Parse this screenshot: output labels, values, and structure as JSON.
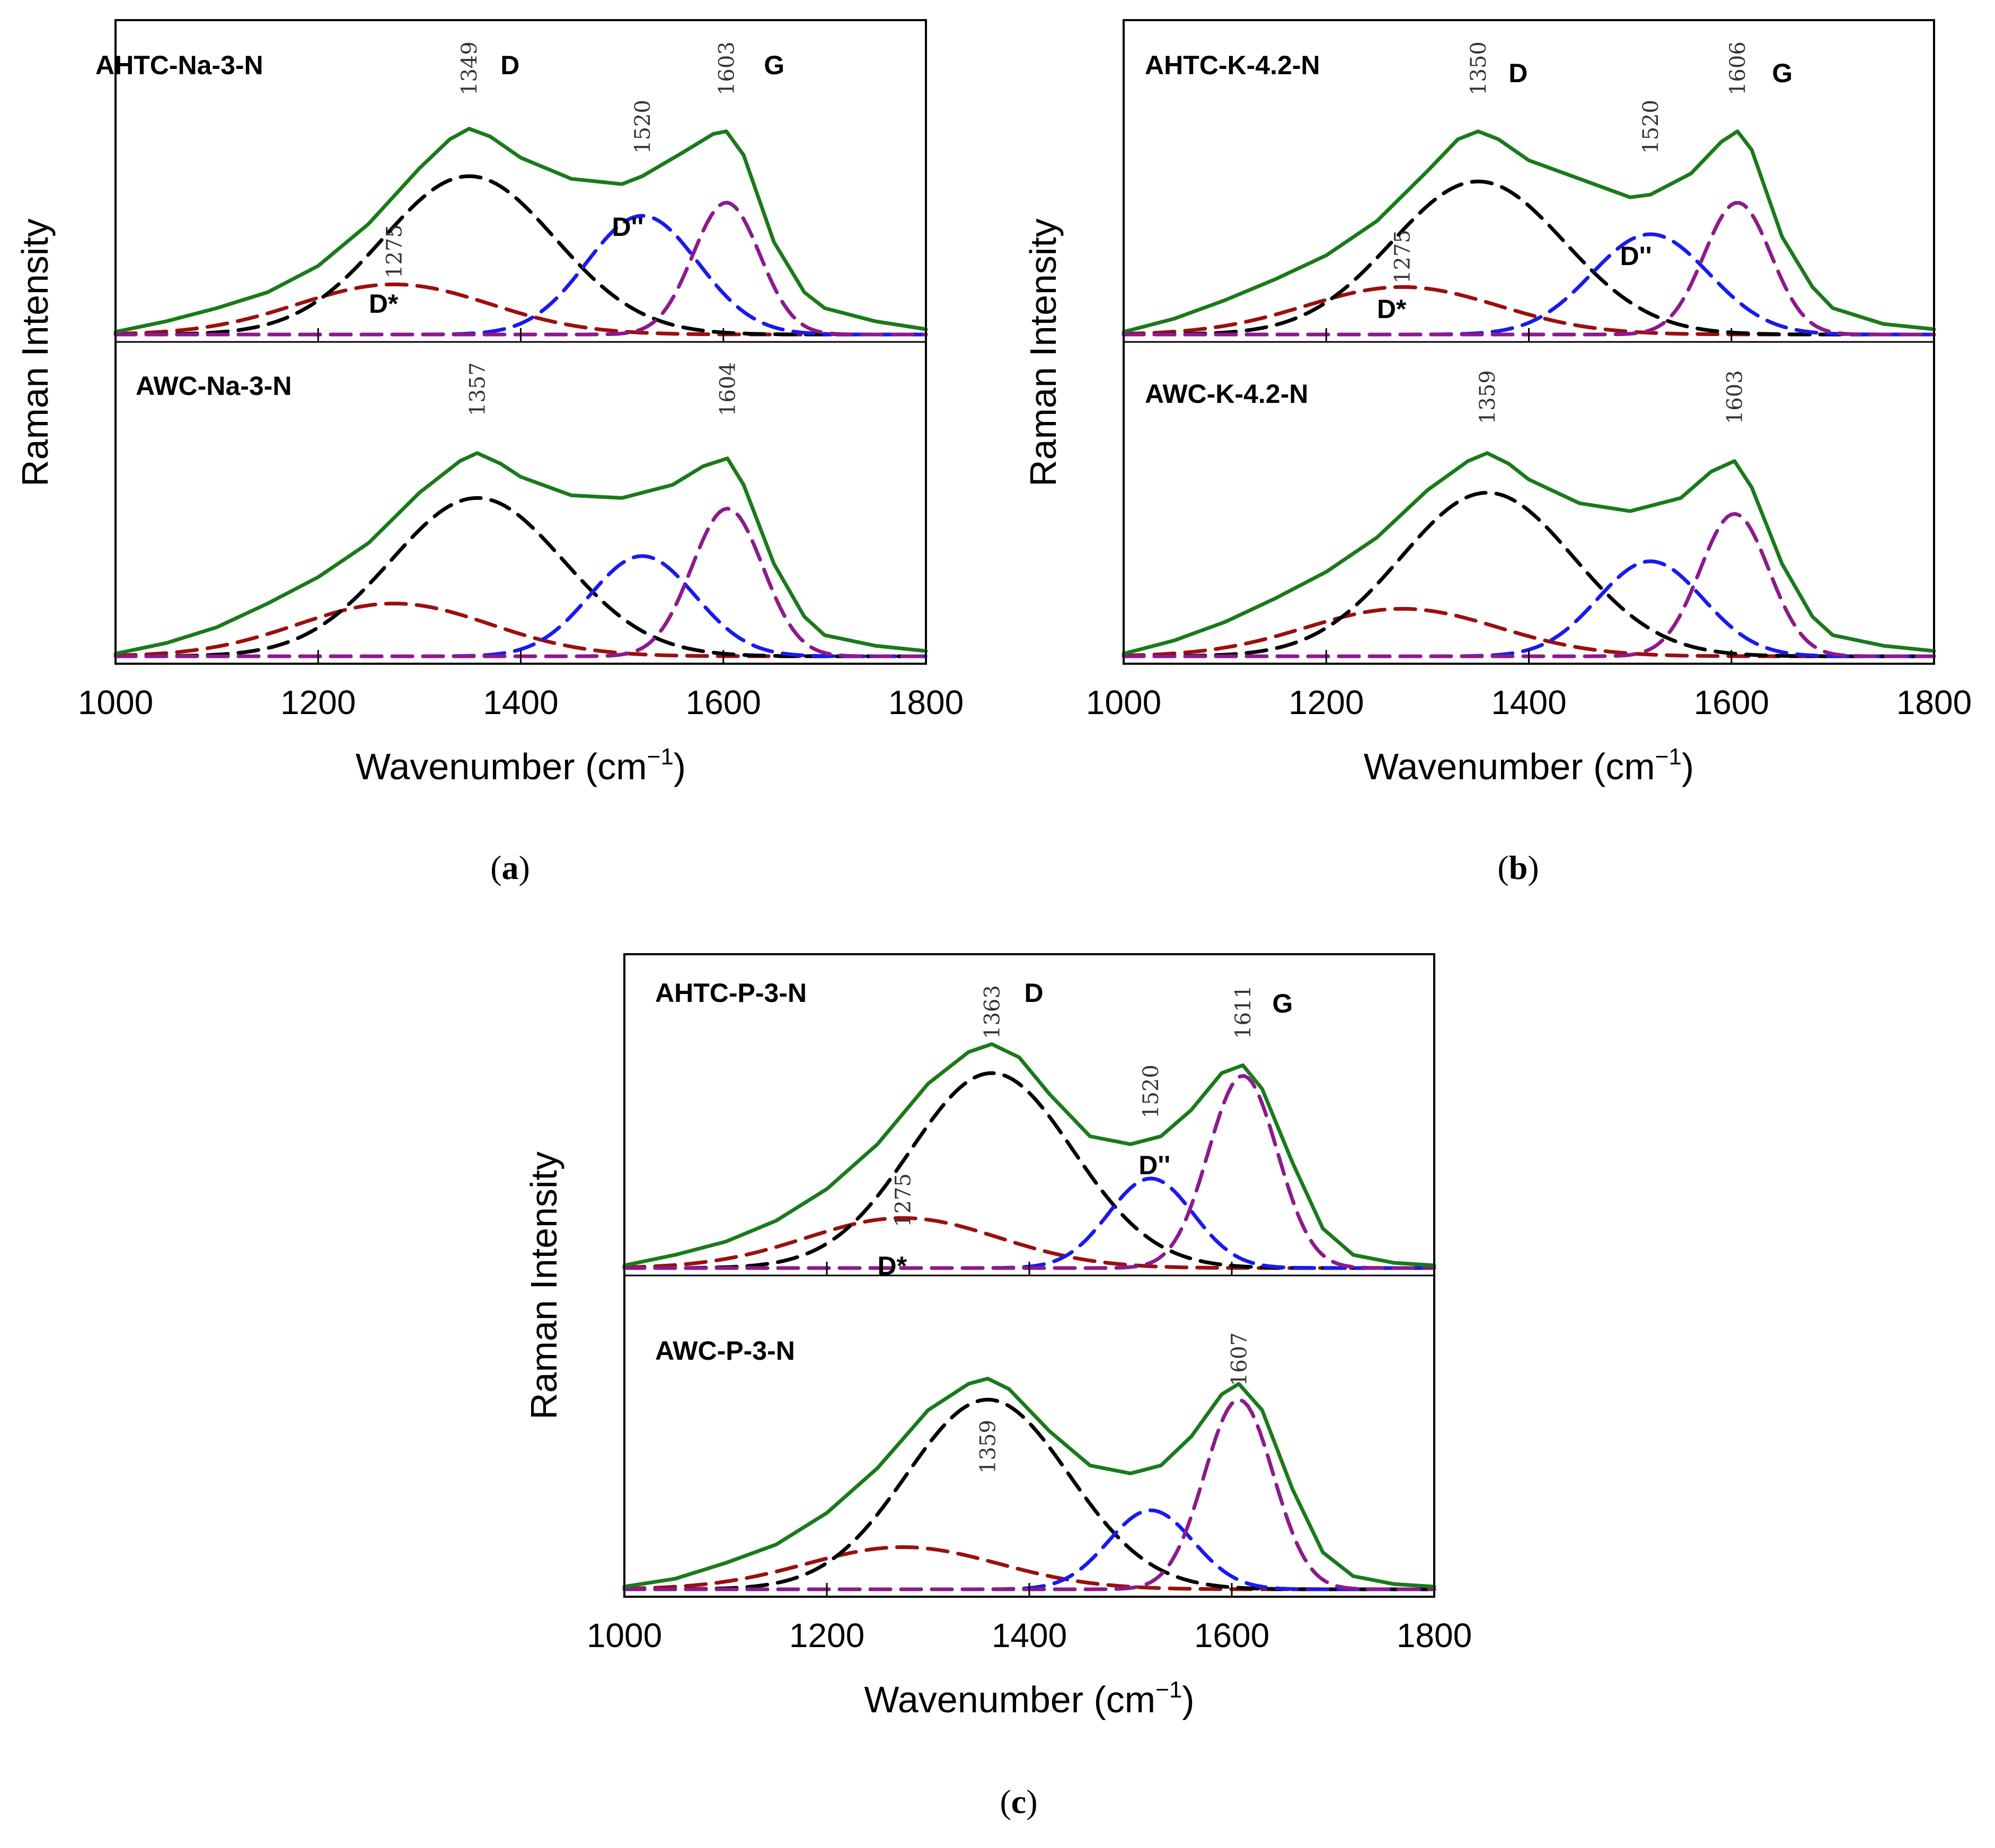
{
  "colors": {
    "measured": "#1a7a1a",
    "d_band": "#000000",
    "d_star": "#9b0f0f",
    "d_double": "#1a1aee",
    "g_band": "#8c1a8c"
  },
  "chart_data": [
    {
      "type": "line",
      "panel": "a",
      "panel_label": "a",
      "xlabel": "Wavenumber (cm",
      "xlabel_sup": "−1",
      "xlabel_close": ")",
      "ylabel": "Raman Intensity",
      "xlim": [
        1000,
        1800
      ],
      "xticks": [
        1000,
        1200,
        1400,
        1600,
        1800
      ],
      "subplots": [
        {
          "sample": "AHTC-Na-3-N",
          "measured": [
            [
              1000,
              0.01
            ],
            [
              1050,
              0.05
            ],
            [
              1100,
              0.1
            ],
            [
              1150,
              0.16
            ],
            [
              1200,
              0.26
            ],
            [
              1250,
              0.42
            ],
            [
              1300,
              0.63
            ],
            [
              1330,
              0.74
            ],
            [
              1349,
              0.78
            ],
            [
              1370,
              0.75
            ],
            [
              1400,
              0.67
            ],
            [
              1450,
              0.59
            ],
            [
              1500,
              0.57
            ],
            [
              1520,
              0.6
            ],
            [
              1560,
              0.69
            ],
            [
              1590,
              0.76
            ],
            [
              1603,
              0.77
            ],
            [
              1620,
              0.68
            ],
            [
              1650,
              0.35
            ],
            [
              1680,
              0.16
            ],
            [
              1700,
              0.1
            ],
            [
              1750,
              0.05
            ],
            [
              1800,
              0.02
            ]
          ],
          "components": [
            {
              "name": "D*",
              "center": 1275,
              "amplitude": 0.19,
              "sigma": 95,
              "color_key": "d_star"
            },
            {
              "name": "D",
              "center": 1349,
              "amplitude": 0.6,
              "sigma": 85,
              "color_key": "d_band"
            },
            {
              "name": "D''",
              "center": 1520,
              "amplitude": 0.45,
              "sigma": 55,
              "color_key": "d_double"
            },
            {
              "name": "G",
              "center": 1603,
              "amplitude": 0.5,
              "sigma": 33,
              "color_key": "g_band"
            }
          ],
          "peak_labels": [
            "1349",
            "1520",
            "1603",
            "1275"
          ],
          "band_labels": [
            "D",
            "G",
            "D''",
            "D*"
          ]
        },
        {
          "sample": "AWC-Na-3-N",
          "measured": [
            [
              1000,
              0.01
            ],
            [
              1050,
              0.05
            ],
            [
              1100,
              0.11
            ],
            [
              1150,
              0.2
            ],
            [
              1200,
              0.3
            ],
            [
              1250,
              0.43
            ],
            [
              1300,
              0.62
            ],
            [
              1340,
              0.74
            ],
            [
              1357,
              0.77
            ],
            [
              1380,
              0.73
            ],
            [
              1400,
              0.68
            ],
            [
              1450,
              0.61
            ],
            [
              1500,
              0.6
            ],
            [
              1550,
              0.65
            ],
            [
              1580,
              0.72
            ],
            [
              1604,
              0.75
            ],
            [
              1620,
              0.65
            ],
            [
              1650,
              0.35
            ],
            [
              1680,
              0.15
            ],
            [
              1700,
              0.08
            ],
            [
              1750,
              0.04
            ],
            [
              1800,
              0.02
            ]
          ],
          "components": [
            {
              "name": "D*",
              "center": 1275,
              "amplitude": 0.2,
              "sigma": 95,
              "color_key": "d_star"
            },
            {
              "name": "D",
              "center": 1357,
              "amplitude": 0.6,
              "sigma": 85,
              "color_key": "d_band"
            },
            {
              "name": "D''",
              "center": 1520,
              "amplitude": 0.38,
              "sigma": 52,
              "color_key": "d_double"
            },
            {
              "name": "G",
              "center": 1604,
              "amplitude": 0.56,
              "sigma": 35,
              "color_key": "g_band"
            }
          ],
          "peak_labels": [
            "1357",
            "1604"
          ],
          "band_labels": []
        }
      ]
    },
    {
      "type": "line",
      "panel": "b",
      "panel_label": "b",
      "xlabel": "Wavenumber (cm",
      "xlabel_sup": "−1",
      "xlabel_close": ")",
      "ylabel": "Raman Intensity",
      "xlim": [
        1000,
        1800
      ],
      "xticks": [
        1000,
        1200,
        1400,
        1600,
        1800
      ],
      "subplots": [
        {
          "sample": "AHTC-K-4.2-N",
          "measured": [
            [
              1000,
              0.01
            ],
            [
              1050,
              0.06
            ],
            [
              1100,
              0.13
            ],
            [
              1150,
              0.21
            ],
            [
              1200,
              0.3
            ],
            [
              1250,
              0.43
            ],
            [
              1300,
              0.62
            ],
            [
              1330,
              0.74
            ],
            [
              1350,
              0.77
            ],
            [
              1370,
              0.74
            ],
            [
              1400,
              0.66
            ],
            [
              1450,
              0.59
            ],
            [
              1500,
              0.52
            ],
            [
              1520,
              0.53
            ],
            [
              1560,
              0.61
            ],
            [
              1590,
              0.73
            ],
            [
              1606,
              0.77
            ],
            [
              1620,
              0.7
            ],
            [
              1650,
              0.37
            ],
            [
              1680,
              0.18
            ],
            [
              1700,
              0.1
            ],
            [
              1750,
              0.04
            ],
            [
              1800,
              0.02
            ]
          ],
          "components": [
            {
              "name": "D*",
              "center": 1275,
              "amplitude": 0.18,
              "sigma": 95,
              "color_key": "d_star"
            },
            {
              "name": "D",
              "center": 1350,
              "amplitude": 0.58,
              "sigma": 85,
              "color_key": "d_band"
            },
            {
              "name": "D''",
              "center": 1520,
              "amplitude": 0.38,
              "sigma": 58,
              "color_key": "d_double"
            },
            {
              "name": "G",
              "center": 1606,
              "amplitude": 0.5,
              "sigma": 33,
              "color_key": "g_band"
            }
          ],
          "peak_labels": [
            "1350",
            "1520",
            "1606",
            "1275"
          ],
          "band_labels": [
            "D",
            "G",
            "D''",
            "D*"
          ]
        },
        {
          "sample": "AWC-K-4.2-N",
          "measured": [
            [
              1000,
              0.01
            ],
            [
              1050,
              0.06
            ],
            [
              1100,
              0.13
            ],
            [
              1150,
              0.22
            ],
            [
              1200,
              0.32
            ],
            [
              1250,
              0.45
            ],
            [
              1300,
              0.63
            ],
            [
              1340,
              0.74
            ],
            [
              1359,
              0.77
            ],
            [
              1380,
              0.73
            ],
            [
              1400,
              0.67
            ],
            [
              1450,
              0.58
            ],
            [
              1500,
              0.55
            ],
            [
              1550,
              0.6
            ],
            [
              1580,
              0.7
            ],
            [
              1603,
              0.74
            ],
            [
              1620,
              0.64
            ],
            [
              1650,
              0.35
            ],
            [
              1680,
              0.15
            ],
            [
              1700,
              0.08
            ],
            [
              1750,
              0.04
            ],
            [
              1800,
              0.02
            ]
          ],
          "components": [
            {
              "name": "D*",
              "center": 1275,
              "amplitude": 0.18,
              "sigma": 95,
              "color_key": "d_star"
            },
            {
              "name": "D",
              "center": 1359,
              "amplitude": 0.62,
              "sigma": 85,
              "color_key": "d_band"
            },
            {
              "name": "D''",
              "center": 1520,
              "amplitude": 0.36,
              "sigma": 52,
              "color_key": "d_double"
            },
            {
              "name": "G",
              "center": 1603,
              "amplitude": 0.54,
              "sigma": 34,
              "color_key": "g_band"
            }
          ],
          "peak_labels": [
            "1359",
            "1603"
          ],
          "band_labels": []
        }
      ]
    },
    {
      "type": "line",
      "panel": "c",
      "panel_label": "c",
      "xlabel": "Wavenumber (cm",
      "xlabel_sup": "−1",
      "xlabel_close": ")",
      "ylabel": "Raman Intensity",
      "xlim": [
        1000,
        1800
      ],
      "xticks": [
        1000,
        1200,
        1400,
        1600,
        1800
      ],
      "subplots": [
        {
          "sample": "AHTC-P-3-N",
          "measured": [
            [
              1000,
              0.01
            ],
            [
              1050,
              0.05
            ],
            [
              1100,
              0.1
            ],
            [
              1150,
              0.18
            ],
            [
              1200,
              0.3
            ],
            [
              1250,
              0.47
            ],
            [
              1300,
              0.7
            ],
            [
              1340,
              0.82
            ],
            [
              1363,
              0.85
            ],
            [
              1390,
              0.8
            ],
            [
              1420,
              0.66
            ],
            [
              1460,
              0.5
            ],
            [
              1500,
              0.47
            ],
            [
              1530,
              0.5
            ],
            [
              1560,
              0.6
            ],
            [
              1590,
              0.74
            ],
            [
              1611,
              0.77
            ],
            [
              1630,
              0.68
            ],
            [
              1660,
              0.4
            ],
            [
              1690,
              0.15
            ],
            [
              1720,
              0.05
            ],
            [
              1760,
              0.02
            ],
            [
              1800,
              0.01
            ]
          ],
          "components": [
            {
              "name": "D*",
              "center": 1275,
              "amplitude": 0.19,
              "sigma": 95,
              "color_key": "d_star"
            },
            {
              "name": "D",
              "center": 1363,
              "amplitude": 0.74,
              "sigma": 80,
              "color_key": "d_band"
            },
            {
              "name": "D''",
              "center": 1520,
              "amplitude": 0.34,
              "sigma": 42,
              "color_key": "d_double"
            },
            {
              "name": "G",
              "center": 1611,
              "amplitude": 0.73,
              "sigma": 34,
              "color_key": "g_band"
            }
          ],
          "peak_labels": [
            "1363",
            "1520",
            "1611",
            "1275"
          ],
          "band_labels": [
            "D",
            "G",
            "D''",
            "D*"
          ]
        },
        {
          "sample": "AWC-P-3-N",
          "measured": [
            [
              1000,
              0.01
            ],
            [
              1050,
              0.04
            ],
            [
              1100,
              0.1
            ],
            [
              1150,
              0.17
            ],
            [
              1200,
              0.29
            ],
            [
              1250,
              0.46
            ],
            [
              1300,
              0.68
            ],
            [
              1340,
              0.78
            ],
            [
              1359,
              0.8
            ],
            [
              1380,
              0.76
            ],
            [
              1420,
              0.6
            ],
            [
              1460,
              0.47
            ],
            [
              1500,
              0.44
            ],
            [
              1530,
              0.47
            ],
            [
              1560,
              0.58
            ],
            [
              1590,
              0.74
            ],
            [
              1607,
              0.78
            ],
            [
              1630,
              0.68
            ],
            [
              1660,
              0.38
            ],
            [
              1690,
              0.14
            ],
            [
              1720,
              0.05
            ],
            [
              1760,
              0.02
            ],
            [
              1800,
              0.01
            ]
          ],
          "components": [
            {
              "name": "D*",
              "center": 1275,
              "amplitude": 0.16,
              "sigma": 95,
              "color_key": "d_star"
            },
            {
              "name": "D",
              "center": 1359,
              "amplitude": 0.72,
              "sigma": 80,
              "color_key": "d_band"
            },
            {
              "name": "D''",
              "center": 1520,
              "amplitude": 0.3,
              "sigma": 42,
              "color_key": "d_double"
            },
            {
              "name": "G",
              "center": 1607,
              "amplitude": 0.72,
              "sigma": 34,
              "color_key": "g_band"
            }
          ],
          "peak_labels": [
            "1607",
            "1359"
          ],
          "band_labels": []
        }
      ]
    }
  ]
}
